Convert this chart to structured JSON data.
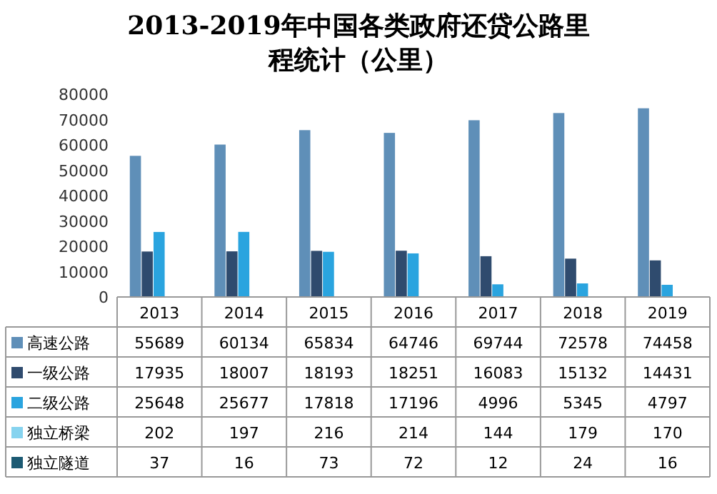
{
  "chart_data": {
    "type": "bar",
    "title": "2013-2019年中国各类政府还贷公路里程统计（公里）",
    "categories": [
      "2013",
      "2014",
      "2015",
      "2016",
      "2017",
      "2018",
      "2019"
    ],
    "series": [
      {
        "name": "高速公路",
        "color": "#5f8fb8",
        "values": [
          55689,
          60134,
          65834,
          64746,
          69744,
          72578,
          74458
        ]
      },
      {
        "name": "一级公路",
        "color": "#2f4b6e",
        "values": [
          17935,
          18007,
          18193,
          18251,
          16083,
          15132,
          14431
        ]
      },
      {
        "name": "二级公路",
        "color": "#2aa4df",
        "values": [
          25648,
          25677,
          17818,
          17196,
          4996,
          5345,
          4797
        ]
      },
      {
        "name": "独立桥梁",
        "color": "#86d3ef",
        "values": [
          202,
          197,
          216,
          214,
          144,
          179,
          170
        ]
      },
      {
        "name": "独立隧道",
        "color": "#1c5a73",
        "values": [
          37,
          16,
          73,
          72,
          12,
          24,
          16
        ]
      }
    ],
    "ylim": [
      0,
      80000
    ],
    "yticks": [
      0,
      10000,
      20000,
      30000,
      40000,
      50000,
      60000,
      70000,
      80000
    ],
    "data_labels": true,
    "legend": "bottom"
  }
}
